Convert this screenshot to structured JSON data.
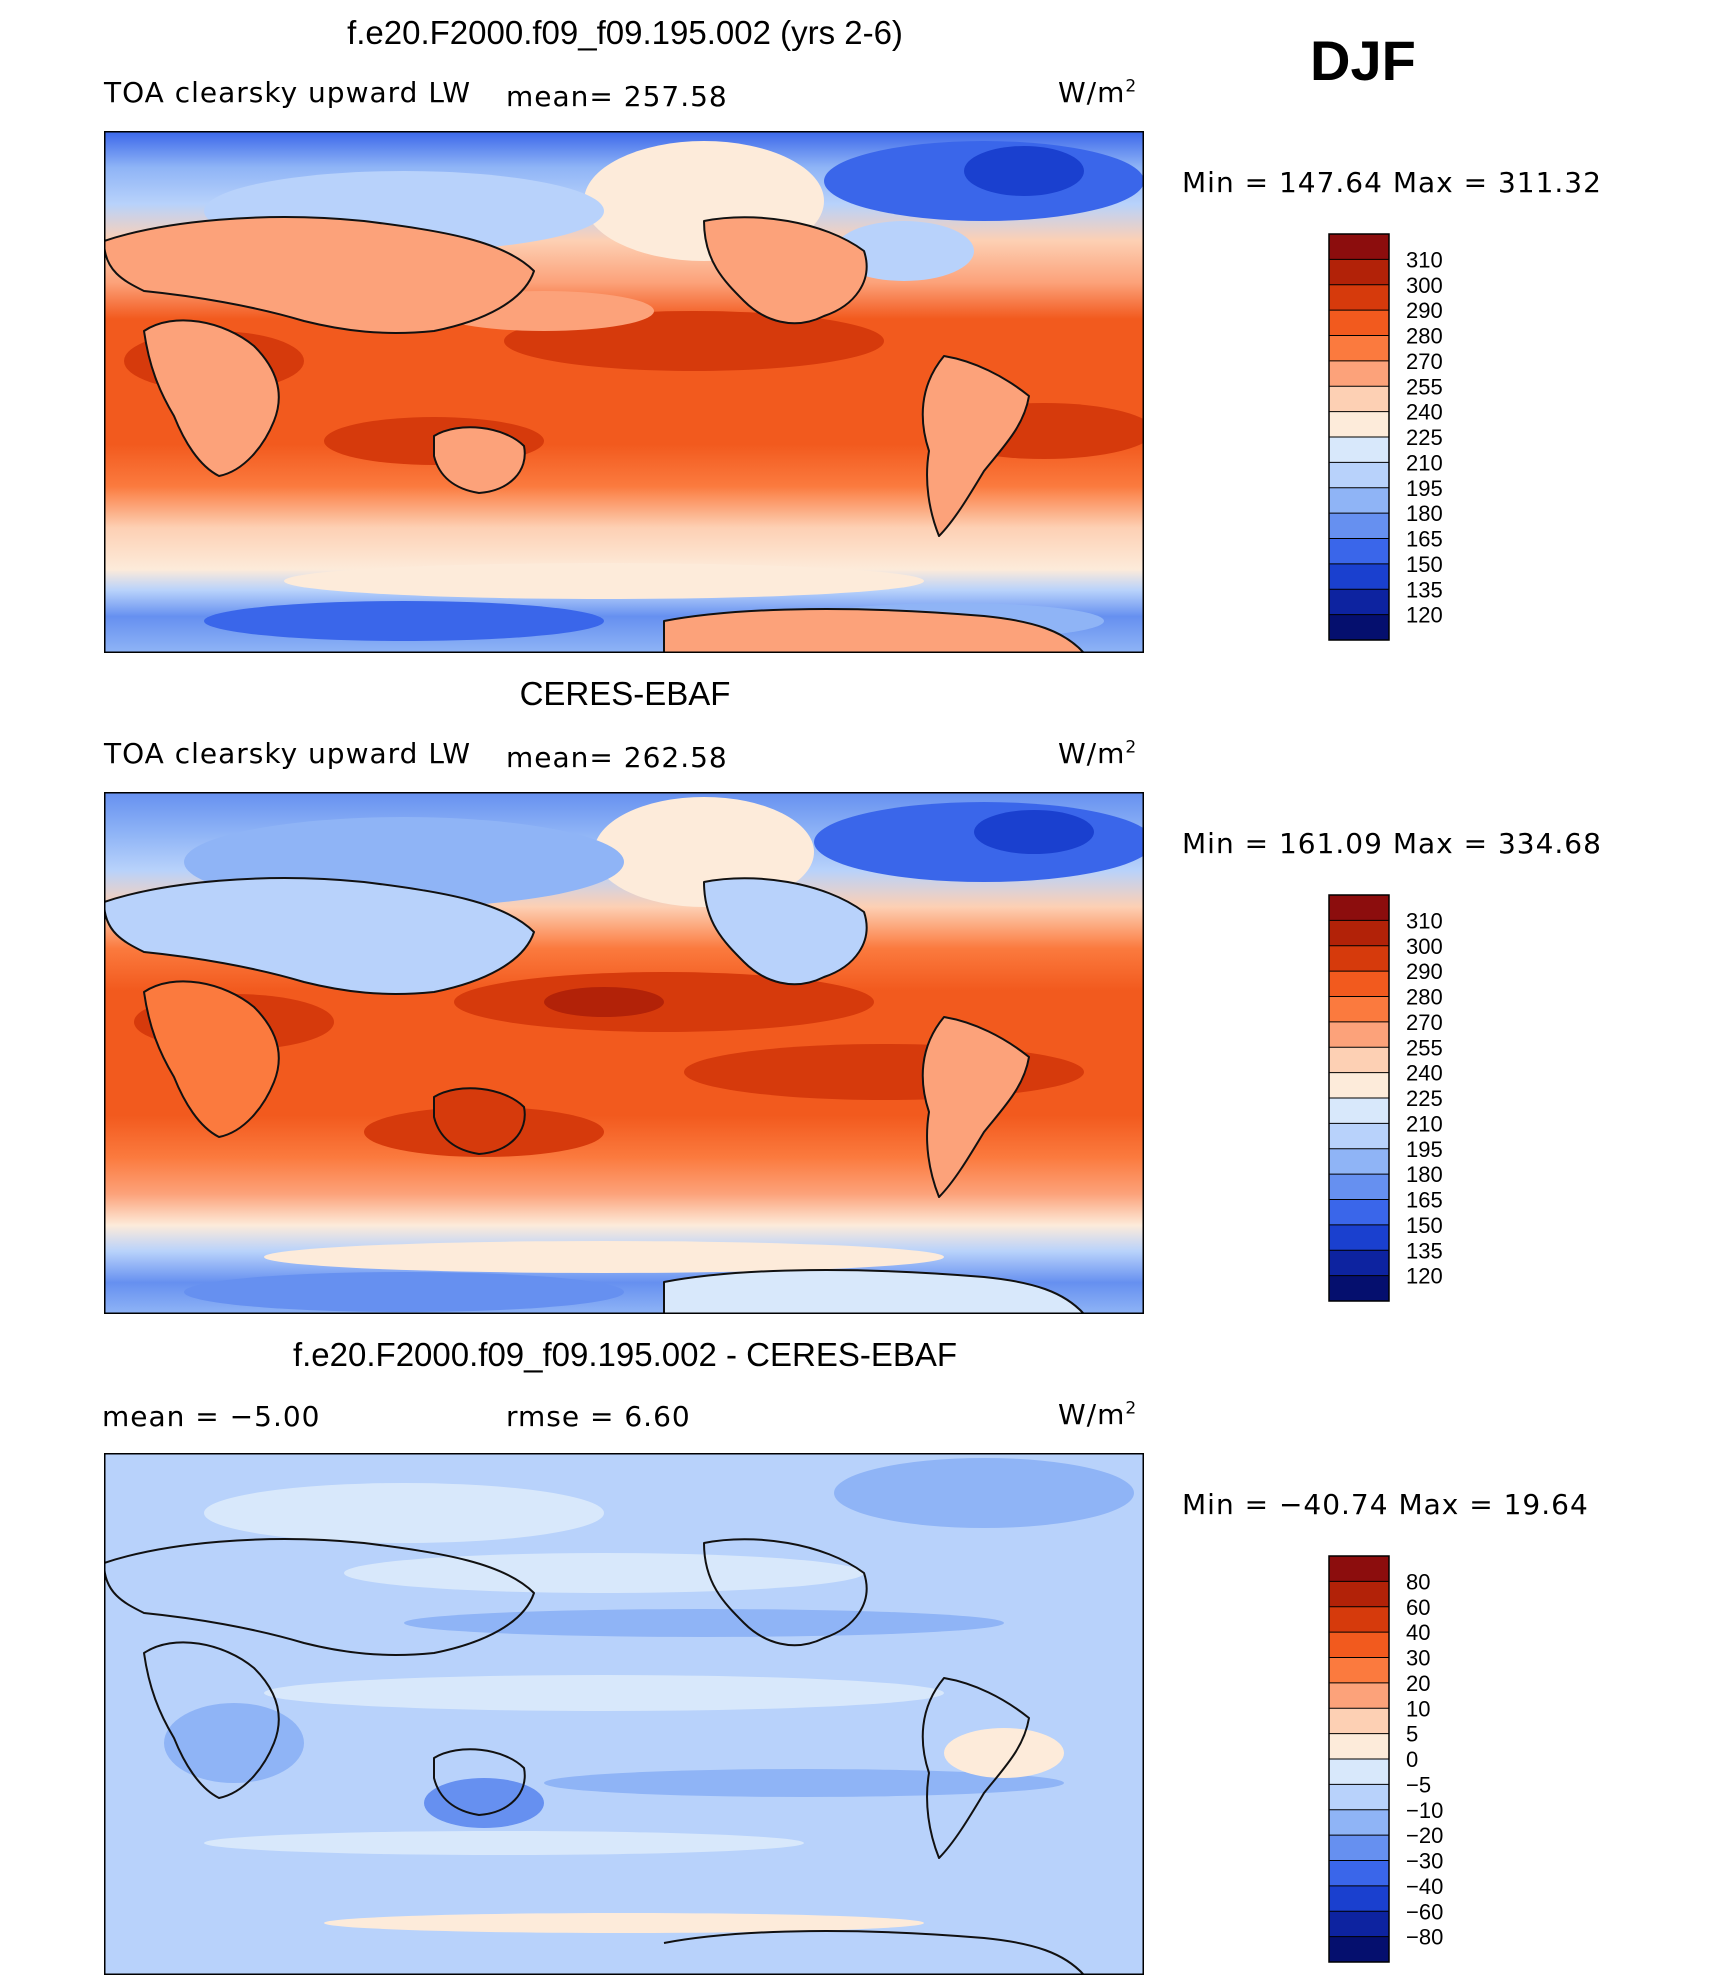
{
  "season": "DJF",
  "units": "W/m",
  "units_sup": "2",
  "panels": [
    {
      "id": "model",
      "title": "f.e20.F2000.f09_f09.195.002 (yrs 2-6)",
      "left_label": "TOA clearsky upward LW",
      "mid_label": "mean= 257.58",
      "minmax": "Min  =  147.64  Max  =  311.32"
    },
    {
      "id": "obs",
      "title": "CERES-EBAF",
      "left_label": "TOA clearsky upward LW",
      "mid_label": "mean= 262.58",
      "minmax": "Min  =  161.09  Max  =  334.68"
    },
    {
      "id": "diff",
      "title": "f.e20.F2000.f09_f09.195.002 - CERES-EBAF",
      "left_label": "mean  =    −5.00",
      "mid_label": "rmse  =     6.60",
      "minmax": "Min  =  −40.74  Max  =    19.64"
    }
  ],
  "colorbars": {
    "absolute": {
      "levels": [
        "310",
        "300",
        "290",
        "280",
        "270",
        "255",
        "240",
        "225",
        "210",
        "195",
        "180",
        "165",
        "150",
        "135",
        "120"
      ],
      "colors": [
        "#8c0d0d",
        "#b22208",
        "#d63a0c",
        "#f25a1e",
        "#fb7a3e",
        "#fca27a",
        "#fdd0b4",
        "#fdebda",
        "#d8e8fb",
        "#b8d2fb",
        "#8fb4f6",
        "#6690f0",
        "#3a66ea",
        "#1a40cf",
        "#0d23a0",
        "#050f6e"
      ]
    },
    "difference": {
      "levels": [
        "80",
        "60",
        "40",
        "30",
        "20",
        "10",
        "5",
        "0",
        "−5",
        "−10",
        "−20",
        "−30",
        "−40",
        "−60",
        "−80"
      ],
      "colors": [
        "#8c0d0d",
        "#b22208",
        "#d63a0c",
        "#f25a1e",
        "#fb7a3e",
        "#fca27a",
        "#fdd0b4",
        "#fdebda",
        "#d8e8fb",
        "#b8d2fb",
        "#8fb4f6",
        "#6690f0",
        "#3a66ea",
        "#1a40cf",
        "#0d23a0",
        "#050f6e"
      ]
    }
  }
}
